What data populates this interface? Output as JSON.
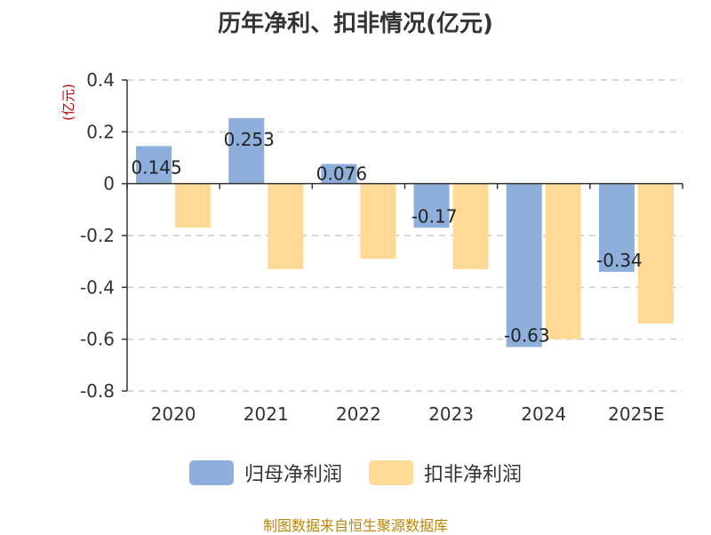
{
  "title": "历年净利、扣非情况(亿元)",
  "source_note": "制图数据来自恒生聚源数据库",
  "chart_data": {
    "type": "bar",
    "title": "历年净利、扣非情况(亿元)",
    "ylabel": "(亿元)",
    "xlabel": "",
    "categories": [
      "2020",
      "2021",
      "2022",
      "2023",
      "2024",
      "2025E"
    ],
    "ylim": [
      -0.8,
      0.4
    ],
    "yticks": [
      0.4,
      0.2,
      0,
      -0.2,
      -0.4,
      -0.6,
      -0.8
    ],
    "ytick_labels": [
      "0.4",
      "0.2",
      "0",
      "-0.2",
      "-0.4",
      "-0.6",
      "-0.8"
    ],
    "grid": true,
    "legend_position": "bottom-center",
    "series": [
      {
        "name": "归母净利润",
        "color": "#8eaedb",
        "values": [
          0.145,
          0.253,
          0.076,
          -0.17,
          -0.63,
          -0.34
        ],
        "data_labels": [
          "0.145",
          "0.253",
          "0.076",
          "-0.17",
          "-0.63",
          "-0.34"
        ]
      },
      {
        "name": "扣非净利润",
        "color": "#ffd996",
        "values": [
          -0.17,
          -0.33,
          -0.29,
          -0.33,
          -0.6,
          -0.54
        ],
        "data_labels": []
      }
    ],
    "colors": {
      "axis": "#333333",
      "grid": "#cccccc",
      "ylabel": "#cc0000",
      "source": "#b8860b"
    }
  }
}
